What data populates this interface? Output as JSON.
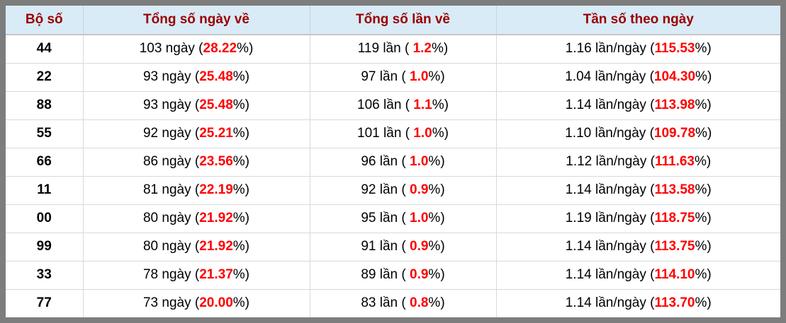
{
  "colors": {
    "frame": "#7d7d7d",
    "header_bg": "#d9ebf6",
    "header_text": "#990000",
    "body_text": "#000000",
    "highlight_red": "#ff0000",
    "grid_border": "#d9d9d9"
  },
  "table": {
    "columns": [
      "Bộ số",
      "Tổng số ngày về",
      "Tổng số lần về",
      "Tần số theo ngày"
    ],
    "rows": [
      {
        "pair": "44",
        "days": {
          "pre": "103 ngày (",
          "red": "28.22",
          "post": "%)"
        },
        "times": {
          "pre": "119 lần ( ",
          "red": "1.2",
          "post": "%)"
        },
        "freq": {
          "pre": "1.16 lần/ngày (",
          "red": "115.53",
          "post": "%)"
        }
      },
      {
        "pair": "22",
        "days": {
          "pre": "93 ngày (",
          "red": "25.48",
          "post": "%)"
        },
        "times": {
          "pre": "97 lần ( ",
          "red": "1.0",
          "post": "%)"
        },
        "freq": {
          "pre": "1.04 lần/ngày (",
          "red": "104.30",
          "post": "%)"
        }
      },
      {
        "pair": "88",
        "days": {
          "pre": "93 ngày (",
          "red": "25.48",
          "post": "%)"
        },
        "times": {
          "pre": "106 lần ( ",
          "red": "1.1",
          "post": "%)"
        },
        "freq": {
          "pre": "1.14 lần/ngày (",
          "red": "113.98",
          "post": "%)"
        }
      },
      {
        "pair": "55",
        "days": {
          "pre": "92 ngày (",
          "red": "25.21",
          "post": "%)"
        },
        "times": {
          "pre": "101 lần ( ",
          "red": "1.0",
          "post": "%)"
        },
        "freq": {
          "pre": "1.10 lần/ngày (",
          "red": "109.78",
          "post": "%)"
        }
      },
      {
        "pair": "66",
        "days": {
          "pre": "86 ngày (",
          "red": "23.56",
          "post": "%)"
        },
        "times": {
          "pre": "96 lần ( ",
          "red": "1.0",
          "post": "%)"
        },
        "freq": {
          "pre": "1.12 lần/ngày (",
          "red": "111.63",
          "post": "%)"
        }
      },
      {
        "pair": "11",
        "days": {
          "pre": "81 ngày (",
          "red": "22.19",
          "post": "%)"
        },
        "times": {
          "pre": "92 lần ( ",
          "red": "0.9",
          "post": "%)"
        },
        "freq": {
          "pre": "1.14 lần/ngày (",
          "red": "113.58",
          "post": "%)"
        }
      },
      {
        "pair": "00",
        "days": {
          "pre": "80 ngày (",
          "red": "21.92",
          "post": "%)"
        },
        "times": {
          "pre": "95 lần ( ",
          "red": "1.0",
          "post": "%)"
        },
        "freq": {
          "pre": "1.19 lần/ngày (",
          "red": "118.75",
          "post": "%)"
        }
      },
      {
        "pair": "99",
        "days": {
          "pre": "80 ngày (",
          "red": "21.92",
          "post": "%)"
        },
        "times": {
          "pre": "91 lần ( ",
          "red": "0.9",
          "post": "%)"
        },
        "freq": {
          "pre": "1.14 lần/ngày (",
          "red": "113.75",
          "post": "%)"
        }
      },
      {
        "pair": "33",
        "days": {
          "pre": "78 ngày (",
          "red": "21.37",
          "post": "%)"
        },
        "times": {
          "pre": "89 lần ( ",
          "red": "0.9",
          "post": "%)"
        },
        "freq": {
          "pre": "1.14 lần/ngày (",
          "red": "114.10",
          "post": "%)"
        }
      },
      {
        "pair": "77",
        "days": {
          "pre": "73 ngày (",
          "red": "20.00",
          "post": "%)"
        },
        "times": {
          "pre": "83 lần ( ",
          "red": "0.8",
          "post": "%)"
        },
        "freq": {
          "pre": "1.14 lần/ngày (",
          "red": "113.70",
          "post": "%)"
        }
      }
    ]
  }
}
